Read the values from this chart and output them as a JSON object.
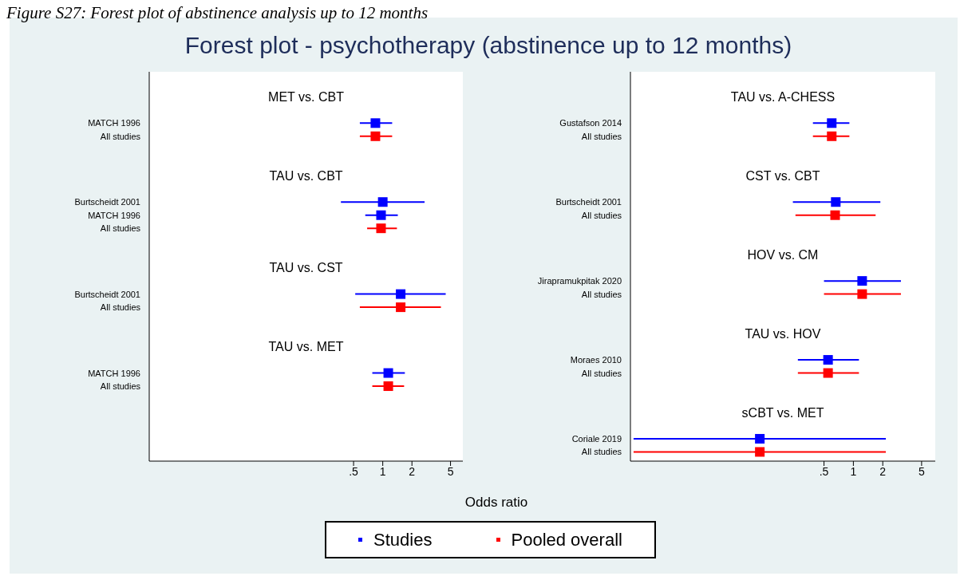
{
  "chart_data": [
    {
      "type": "scatter",
      "title": "Forest plot - psychotherapy (abstinence up to 12 months)",
      "subtitle": "Figure S27: Forest plot of abstinence analysis up to 12 months",
      "xlabel": "Odds ratio",
      "annotations": [
        "MET vs. CBT",
        "TAU vs. CBT",
        "TAU vs. CST",
        "TAU vs. MET"
      ],
      "categories": [
        null,
        "MATCH 1996",
        "All studies",
        null,
        "Burtscheidt 2001",
        "MATCH 1996",
        "All studies",
        null,
        "Burtscheidt 2001",
        "All studies",
        null,
        "MATCH 1996",
        "All studies"
      ],
      "series": [
        {
          "name": "Studies",
          "color": "#0000ff",
          "values": [
            null,
            0.84,
            null,
            null,
            1.0,
            0.96,
            null,
            null,
            1.53,
            null,
            null,
            1.14,
            null
          ],
          "errors": [
            null,
            [
              0.58,
              1.25
            ],
            null,
            null,
            [
              0.37,
              2.7
            ],
            [
              0.66,
              1.43
            ],
            null,
            null,
            [
              0.52,
              4.46
            ],
            null,
            null,
            [
              0.78,
              1.69
            ],
            null
          ]
        },
        {
          "name": "Pooled overall",
          "color": "#ff0000",
          "values": [
            null,
            null,
            0.84,
            null,
            null,
            null,
            0.96,
            null,
            null,
            1.53,
            null,
            null,
            1.14
          ],
          "errors": [
            null,
            null,
            [
              0.58,
              1.25
            ],
            null,
            null,
            null,
            [
              0.69,
              1.4
            ],
            null,
            null,
            [
              0.58,
              3.98
            ],
            null,
            null,
            [
              0.78,
              1.66
            ]
          ]
        }
      ],
      "orientation": "horizontal",
      "log": "x",
      "xlim": [
        0.0039,
        6.7
      ],
      "xticks": [
        {
          "value": 0.5,
          "label": ".5"
        },
        1,
        2,
        5
      ],
      "marker": "square",
      "legend": "bottom",
      "grid": false
    },
    {
      "type": "scatter",
      "annotations": [
        "TAU vs. A-CHESS",
        "CST vs. CBT",
        "HOV vs. CM",
        "TAU vs. HOV",
        "sCBT vs. MET"
      ],
      "categories": [
        null,
        "Gustafson 2014",
        "All studies",
        null,
        "Burtscheidt 2001",
        "All studies",
        null,
        "Jirapramukpitak 2020",
        "All studies",
        null,
        "Moraes 2010",
        "All studies",
        null,
        "Coriale 2019",
        "All studies"
      ],
      "series": [
        {
          "color": "#0000ff",
          "values": [
            null,
            0.6,
            null,
            null,
            0.66,
            null,
            null,
            1.23,
            null,
            null,
            0.55,
            null,
            null,
            0.11,
            null
          ],
          "errors": [
            null,
            [
              0.385,
              0.91
            ],
            null,
            null,
            [
              0.24,
              1.89
            ],
            null,
            null,
            [
              0.5,
              3.07
            ],
            null,
            null,
            [
              0.27,
              1.14
            ],
            null,
            null,
            [
              0.0056,
              2.15
            ],
            null
          ]
        },
        {
          "color": "#ff0000",
          "values": [
            null,
            null,
            0.6,
            null,
            null,
            0.65,
            null,
            null,
            1.23,
            null,
            null,
            0.55,
            null,
            null,
            0.11
          ],
          "errors": [
            null,
            null,
            [
              0.385,
              0.91
            ],
            null,
            null,
            [
              0.255,
              1.69
            ],
            null,
            null,
            [
              0.5,
              3.07
            ],
            null,
            null,
            [
              0.27,
              1.14
            ],
            null,
            null,
            [
              0.0056,
              2.15
            ]
          ]
        }
      ],
      "orientation": "horizontal",
      "log": "x",
      "xlim": [
        0.0052,
        6.9
      ],
      "xticks": [
        {
          "value": 0.5,
          "label": ".5"
        },
        1,
        2,
        5
      ],
      "marker": "square",
      "grid": false
    }
  ]
}
